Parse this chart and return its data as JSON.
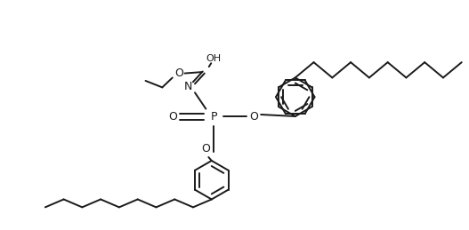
{
  "line_color": "#1a1a1a",
  "line_width": 1.4,
  "bg_color": "#ffffff",
  "figsize": [
    5.27,
    2.59
  ],
  "dpi": 100,
  "xlim": [
    0,
    10.54
  ],
  "ylim": [
    0,
    5.18
  ]
}
